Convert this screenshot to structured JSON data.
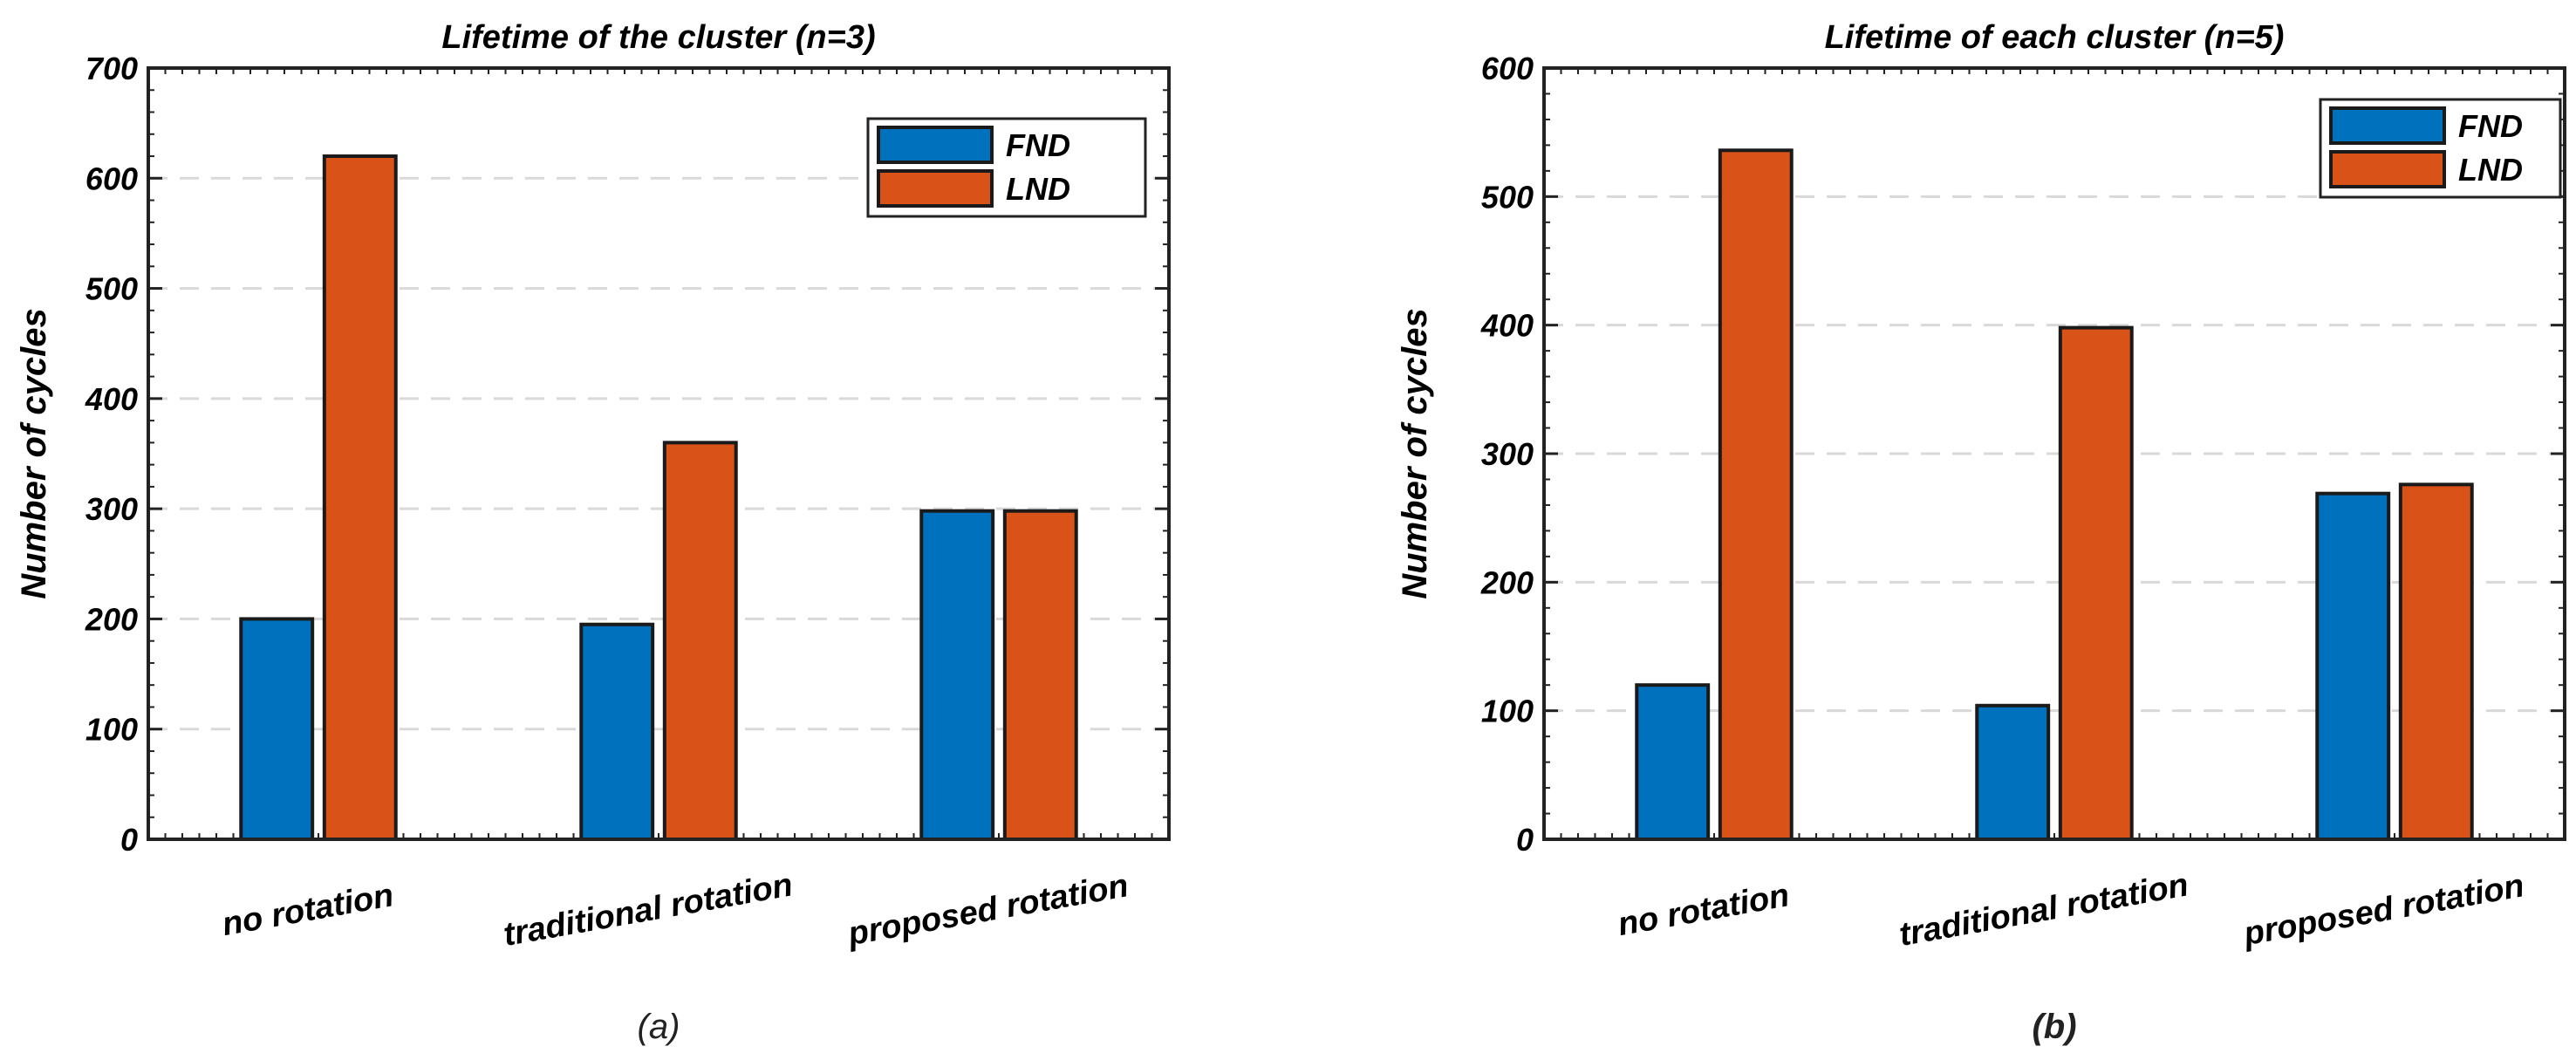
{
  "chart_data": [
    {
      "type": "bar",
      "title": "Lifetime of the cluster (n=3)",
      "ylabel": "Number of cycles",
      "xlabel": "",
      "categories": [
        "no rotation",
        "traditional rotation",
        "proposed rotation"
      ],
      "series": [
        {
          "name": "FND",
          "color": "#0072BD",
          "values": [
            200,
            195,
            298
          ]
        },
        {
          "name": "LND",
          "color": "#D95319",
          "values": [
            620,
            360,
            298
          ]
        }
      ],
      "ylim": [
        0,
        700
      ],
      "yticks": [
        0,
        100,
        200,
        300,
        400,
        500,
        600,
        700
      ],
      "grid": "horizontal dashed",
      "legend_position": "top-right",
      "caption": "(a)"
    },
    {
      "type": "bar",
      "title": "Lifetime of each cluster (n=5)",
      "ylabel": "Number of cycles",
      "xlabel": "",
      "categories": [
        "no rotation",
        "traditional rotation",
        "proposed rotation"
      ],
      "series": [
        {
          "name": "FND",
          "color": "#0072BD",
          "values": [
            120,
            104,
            269
          ]
        },
        {
          "name": "LND",
          "color": "#D95319",
          "values": [
            536,
            398,
            276
          ]
        }
      ],
      "ylim": [
        0,
        600
      ],
      "yticks": [
        0,
        100,
        200,
        300,
        400,
        500,
        600
      ],
      "grid": "horizontal dashed",
      "legend_position": "top-right",
      "caption": "(b)"
    }
  ]
}
